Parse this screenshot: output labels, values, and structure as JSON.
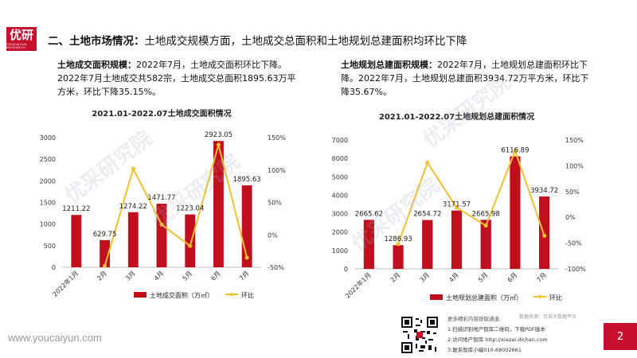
{
  "logo": {
    "text": "优研",
    "sub": "YOUCAIYUN RESEARCH"
  },
  "heading": {
    "prefix": "二、土地市场情况：",
    "body": "土地成交规模方面，土地成交总面积和土地规划总建面积均环比下降"
  },
  "left_text": {
    "bold": "土地成交面积规模：",
    "body": "2022年7月，土地成交面积环比下降。2022年7月土地成交共582宗，土地成交总面积1895.63万平方米，环比下降35.15%。"
  },
  "right_text": {
    "bold": "土地规划总建面积规模：",
    "body": "2022年7月，土地规划总建面积环比下降。2022年7月，土地规划总建面积3934.72万平方米，环比下降35.67%。"
  },
  "chart_data": [
    {
      "type": "bar",
      "title": "2021.01-2022.07土地成交面积情况",
      "categories": [
        "2022年1月",
        "2月",
        "3月",
        "4月",
        "5月",
        "6月",
        "7月"
      ],
      "series": [
        {
          "name": "土地成交面积（万㎡）",
          "type": "bar",
          "axis": "left",
          "color": "#c0101e",
          "values": [
            1211.22,
            629.75,
            1274.22,
            1471.77,
            1223.04,
            2923.05,
            1895.63
          ],
          "labels": [
            "1211.22",
            "629.75",
            "1274.22",
            "1471.77",
            "1223.04",
            "2923.05",
            "1895.63"
          ]
        },
        {
          "name": "环比",
          "type": "line",
          "axis": "right",
          "color": "#f2c12e",
          "values": [
            null,
            -48,
            102,
            16,
            -17,
            139,
            -35.15
          ]
        }
      ],
      "yleft": {
        "min": 0,
        "max": 3000,
        "ticks": [
          0,
          500,
          1000,
          1500,
          2000,
          2500,
          3000
        ]
      },
      "yright": {
        "min": -50,
        "max": 150,
        "ticks": [
          -50,
          0,
          50,
          100,
          150
        ],
        "tick_labels": [
          "-50%",
          "0%",
          "50%",
          "100%",
          "150%"
        ]
      },
      "legend": "bottom"
    },
    {
      "type": "bar",
      "title": "2021.01-2022.07土地规划总建面积情况",
      "categories": [
        "2022年1月",
        "2月",
        "3月",
        "4月",
        "5月",
        "6月",
        "7月"
      ],
      "series": [
        {
          "name": "土地规划总建面积（万㎡）",
          "type": "bar",
          "axis": "left",
          "color": "#c0101e",
          "values": [
            2665.62,
            1286.93,
            2654.72,
            3171.57,
            2665.98,
            6116.89,
            3934.72
          ],
          "labels": [
            "2665.62",
            "1286.93",
            "2654.72",
            "3171.57",
            "2665.98",
            "6116.89",
            "3934.72"
          ]
        },
        {
          "name": "环比",
          "type": "line",
          "axis": "right",
          "color": "#f2c12e",
          "values": [
            null,
            -52,
            106,
            19,
            -16,
            129,
            -35.67
          ]
        }
      ],
      "yleft": {
        "min": 0,
        "max": 7000,
        "ticks": [
          0,
          1000,
          2000,
          3000,
          4000,
          5000,
          6000,
          7000
        ]
      },
      "yright": {
        "min": -100,
        "max": 150,
        "ticks": [
          -100,
          -50,
          0,
          50,
          100,
          150
        ],
        "tick_labels": [
          "-100%",
          "-50%",
          "0%",
          "50%",
          "100%",
          "150%"
        ]
      },
      "legend": "bottom"
    }
  ],
  "footer": {
    "site": "www.youcaiyun.com",
    "more": "更多精彩内容获取通道:",
    "line1": "1.扫描识别地产智库二维码，下载PDF版本",
    "line2": "2.访问地产智库 http://xiazai.dichan.com",
    "line3": "3.联系智库小编010-68002661",
    "source": "数据来源：优采大数据平台",
    "page": "2"
  },
  "watermark": "优采研究院"
}
